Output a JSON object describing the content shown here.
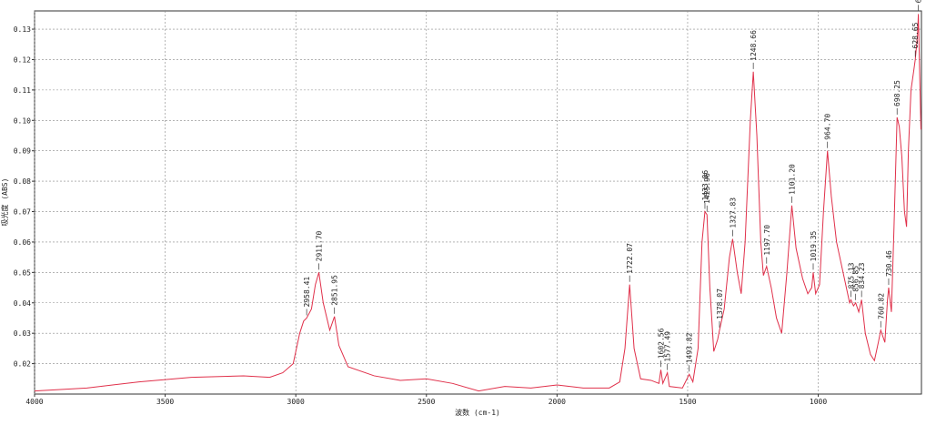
{
  "chart_data": {
    "type": "line",
    "x_label": "波数 (cm-1)",
    "y_label": "吸光度 (ABS)",
    "xlim": [
      4000,
      605
    ],
    "ylim": [
      0.01,
      0.136
    ],
    "xticks": [
      4000,
      3500,
      3000,
      2500,
      2000,
      1500,
      1000
    ],
    "yticks": [
      0.02,
      0.03,
      0.04,
      0.05,
      0.06,
      0.07,
      0.08,
      0.09,
      {
        "value": 0.1,
        "label": "0.10"
      },
      0.11,
      0.12,
      0.13
    ],
    "grid": true,
    "x": [
      4000,
      3800,
      3600,
      3400,
      3200,
      3100,
      3050,
      3010,
      2985,
      2970,
      2958.41,
      2940,
      2925,
      2911.7,
      2895,
      2870,
      2851.95,
      2835,
      2800,
      2700,
      2600,
      2500,
      2400,
      2300,
      2200,
      2100,
      2000,
      1900,
      1800,
      1760,
      1740,
      1722.07,
      1705,
      1680,
      1640,
      1610,
      1602.56,
      1595,
      1577.49,
      1570,
      1520,
      1493.82,
      1480,
      1460,
      1445,
      1433.86,
      1425.96,
      1415,
      1400,
      1385,
      1378.07,
      1360,
      1340,
      1327.83,
      1310,
      1295,
      1280,
      1260,
      1248.66,
      1235,
      1220,
      1210,
      1197.7,
      1180,
      1160,
      1140,
      1120,
      1101.2,
      1085,
      1060,
      1040,
      1025,
      1019.35,
      1010,
      995,
      980,
      964.7,
      950,
      930,
      900,
      880,
      875.13,
      865,
      856.85,
      845,
      834.23,
      820,
      800,
      785,
      770,
      760.82,
      745,
      735,
      730.46,
      720,
      710,
      698.25,
      690,
      680,
      670,
      662,
      655,
      645,
      635,
      628.65,
      620,
      616.8,
      607
    ],
    "series": [
      {
        "name": "spectrum",
        "color": "#e0304a",
        "values": [
          0.011,
          0.012,
          0.014,
          0.0155,
          0.016,
          0.0155,
          0.017,
          0.02,
          0.03,
          0.034,
          0.035,
          0.038,
          0.046,
          0.05,
          0.04,
          0.031,
          0.0355,
          0.026,
          0.019,
          0.016,
          0.0145,
          0.015,
          0.0135,
          0.011,
          0.0125,
          0.012,
          0.013,
          0.012,
          0.012,
          0.014,
          0.025,
          0.046,
          0.025,
          0.015,
          0.0145,
          0.0135,
          0.018,
          0.0135,
          0.017,
          0.0125,
          0.012,
          0.0165,
          0.014,
          0.025,
          0.06,
          0.07,
          0.069,
          0.045,
          0.024,
          0.028,
          0.031,
          0.038,
          0.055,
          0.061,
          0.05,
          0.043,
          0.06,
          0.1,
          0.116,
          0.095,
          0.06,
          0.049,
          0.052,
          0.045,
          0.035,
          0.03,
          0.05,
          0.072,
          0.058,
          0.048,
          0.043,
          0.045,
          0.05,
          0.043,
          0.046,
          0.07,
          0.09,
          0.075,
          0.06,
          0.048,
          0.04,
          0.041,
          0.039,
          0.04,
          0.037,
          0.041,
          0.03,
          0.023,
          0.021,
          0.027,
          0.031,
          0.027,
          0.041,
          0.045,
          0.037,
          0.065,
          0.101,
          0.098,
          0.088,
          0.07,
          0.065,
          0.09,
          0.11,
          0.116,
          0.12,
          0.128,
          0.135,
          0.097
        ]
      }
    ],
    "peaks": [
      {
        "label": "2958.41",
        "x": 2958.41,
        "y": 0.035
      },
      {
        "label": "2911.70",
        "x": 2911.7,
        "y": 0.05
      },
      {
        "label": "2851.95",
        "x": 2851.95,
        "y": 0.0355
      },
      {
        "label": "1722.07",
        "x": 1722.07,
        "y": 0.046
      },
      {
        "label": "1602.56",
        "x": 1602.56,
        "y": 0.018
      },
      {
        "label": "1577.49",
        "x": 1577.49,
        "y": 0.017
      },
      {
        "label": "1493.82",
        "x": 1493.82,
        "y": 0.0165
      },
      {
        "label": "1433.86",
        "x": 1433.86,
        "y": 0.07
      },
      {
        "label": "1425.96",
        "x": 1425.96,
        "y": 0.069
      },
      {
        "label": "1378.07",
        "x": 1378.07,
        "y": 0.031
      },
      {
        "label": "1327.83",
        "x": 1327.83,
        "y": 0.061
      },
      {
        "label": "1248.66",
        "x": 1248.66,
        "y": 0.116
      },
      {
        "label": "1197.70",
        "x": 1197.7,
        "y": 0.052
      },
      {
        "label": "1101.20",
        "x": 1101.2,
        "y": 0.072
      },
      {
        "label": "1019.35",
        "x": 1019.35,
        "y": 0.05
      },
      {
        "label": "964.70",
        "x": 964.7,
        "y": 0.09
      },
      {
        "label": "875.13",
        "x": 875.13,
        "y": 0.041
      },
      {
        "label": "856.85",
        "x": 856.85,
        "y": 0.04
      },
      {
        "label": "834.23",
        "x": 834.23,
        "y": 0.041
      },
      {
        "label": "760.82",
        "x": 760.82,
        "y": 0.031
      },
      {
        "label": "730.46",
        "x": 730.46,
        "y": 0.045
      },
      {
        "label": "698.25",
        "x": 698.25,
        "y": 0.101
      },
      {
        "label": "628.65",
        "x": 628.65,
        "y": 0.12
      },
      {
        "label": "616.80",
        "x": 616.8,
        "y": 0.135
      }
    ]
  }
}
